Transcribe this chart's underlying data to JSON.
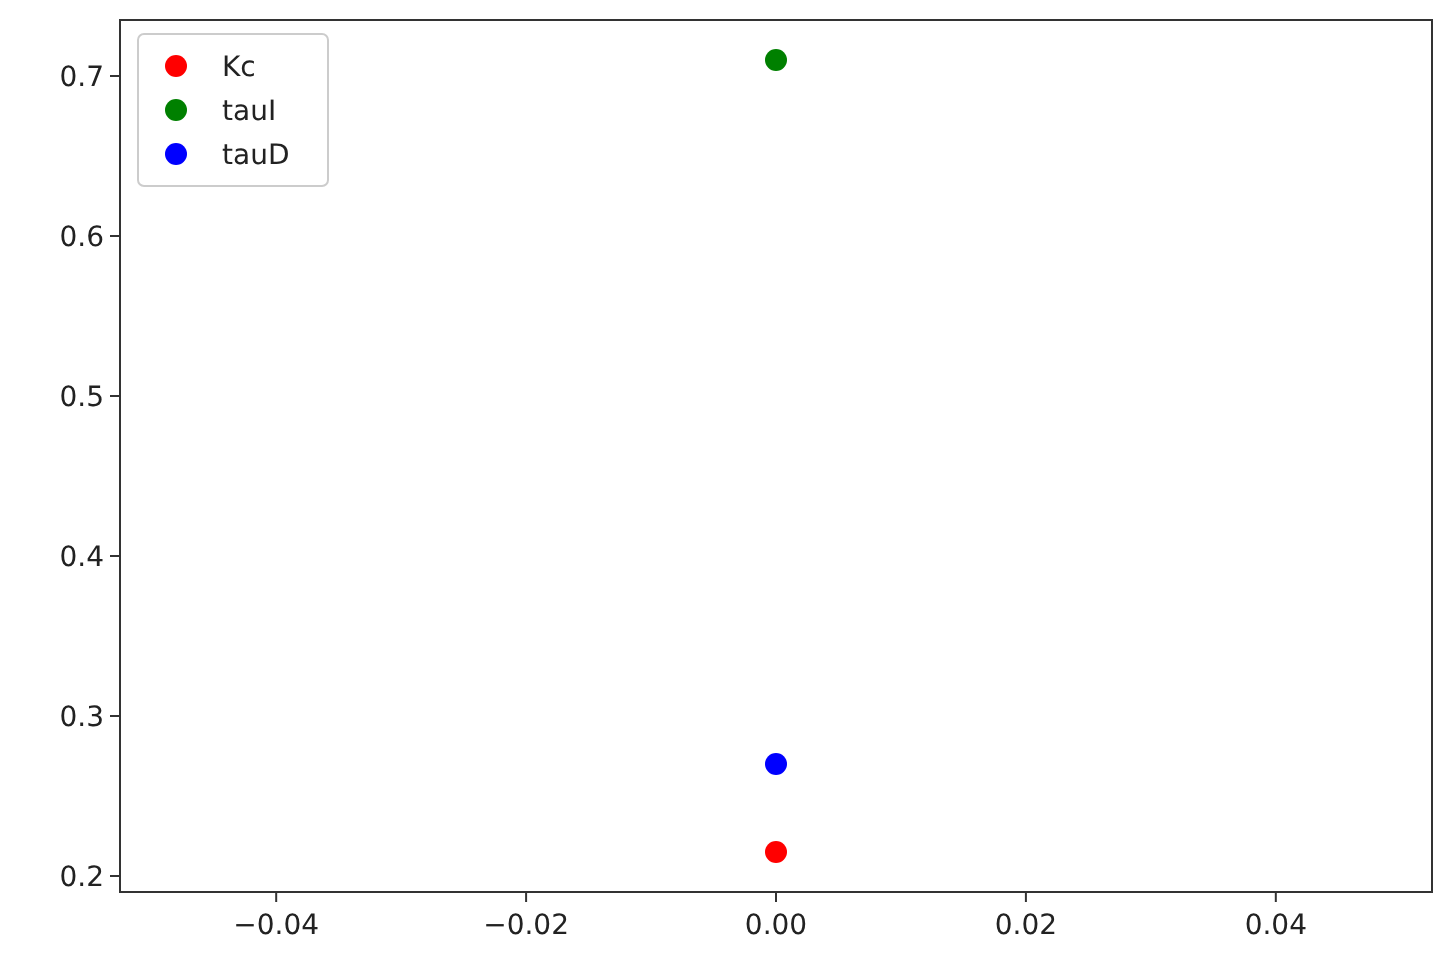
{
  "chart_data": {
    "type": "scatter",
    "x": [
      0
    ],
    "series": [
      {
        "name": "Kc",
        "color": "#ff0000",
        "values": [
          0.215
        ]
      },
      {
        "name": "tauI",
        "color": "#008000",
        "values": [
          0.71
        ]
      },
      {
        "name": "tauD",
        "color": "#0000ff",
        "values": [
          0.27
        ]
      }
    ],
    "xlim": [
      -0.0525,
      0.0525
    ],
    "xticks": [
      {
        "value": -0.04,
        "label": "−0.04"
      },
      {
        "value": -0.02,
        "label": "−0.02"
      },
      {
        "value": 0,
        "label": "0.00"
      },
      {
        "value": 0.02,
        "label": "0.02"
      },
      {
        "value": 0.04,
        "label": "0.04"
      }
    ],
    "ylim": [
      0.19,
      0.735
    ],
    "yticks": [
      {
        "value": 0.2,
        "label": "0.2"
      },
      {
        "value": 0.3,
        "label": "0.3"
      },
      {
        "value": 0.4,
        "label": "0.4"
      },
      {
        "value": 0.5,
        "label": "0.5"
      },
      {
        "value": 0.6,
        "label": "0.6"
      },
      {
        "value": 0.7,
        "label": "0.7"
      }
    ],
    "legend": "top left",
    "marker": "circle",
    "grid": false
  }
}
